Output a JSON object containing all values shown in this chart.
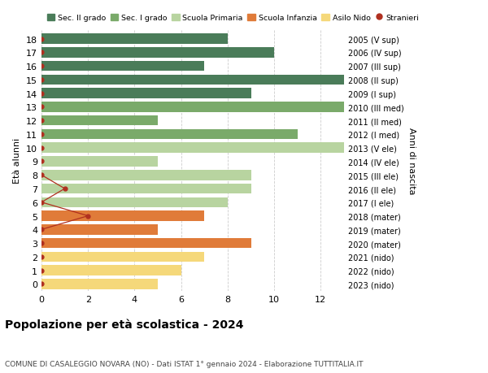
{
  "ages": [
    18,
    17,
    16,
    15,
    14,
    13,
    12,
    11,
    10,
    9,
    8,
    7,
    6,
    5,
    4,
    3,
    2,
    1,
    0
  ],
  "years": [
    "2005 (V sup)",
    "2006 (IV sup)",
    "2007 (III sup)",
    "2008 (II sup)",
    "2009 (I sup)",
    "2010 (III med)",
    "2011 (II med)",
    "2012 (I med)",
    "2013 (V ele)",
    "2014 (IV ele)",
    "2015 (III ele)",
    "2016 (II ele)",
    "2017 (I ele)",
    "2018 (mater)",
    "2019 (mater)",
    "2020 (mater)",
    "2021 (nido)",
    "2022 (nido)",
    "2023 (nido)"
  ],
  "values": [
    8,
    10,
    7,
    13,
    9,
    13,
    5,
    11,
    13,
    5,
    9,
    9,
    8,
    7,
    5,
    9,
    7,
    6,
    5
  ],
  "stranieri_vals": [
    0,
    0,
    0,
    0,
    0,
    0,
    0,
    0,
    0,
    0,
    0,
    1,
    0,
    2,
    0,
    0,
    0,
    0,
    0
  ],
  "bar_colors": [
    "#4a7c59",
    "#4a7c59",
    "#4a7c59",
    "#4a7c59",
    "#4a7c59",
    "#7aaa6a",
    "#7aaa6a",
    "#7aaa6a",
    "#b8d4a0",
    "#b8d4a0",
    "#b8d4a0",
    "#b8d4a0",
    "#b8d4a0",
    "#e07b39",
    "#e07b39",
    "#e07b39",
    "#f5d87a",
    "#f5d87a",
    "#f5d87a"
  ],
  "color_sec2": "#4a7c59",
  "color_sec1": "#7aaa6a",
  "color_primaria": "#b8d4a0",
  "color_infanzia": "#e07b39",
  "color_nido": "#f5d87a",
  "color_stranieri": "#b03020",
  "title": "Popolazione per età scolastica - 2024",
  "subtitle": "COMUNE DI CASALEGGIO NOVARA (NO) - Dati ISTAT 1° gennaio 2024 - Elaborazione TUTTITALIA.IT",
  "ylabel": "Età alunni",
  "ylabel2": "Anni di nascita",
  "xlim": [
    0,
    13
  ],
  "xticks": [
    0,
    2,
    4,
    6,
    8,
    10,
    12
  ],
  "bg_color": "#ffffff",
  "grid_color": "#cccccc",
  "stranieri_segment_ages": [
    8,
    7,
    6,
    5,
    4
  ],
  "stranieri_segment_vals": [
    0,
    1,
    0,
    2,
    0
  ]
}
